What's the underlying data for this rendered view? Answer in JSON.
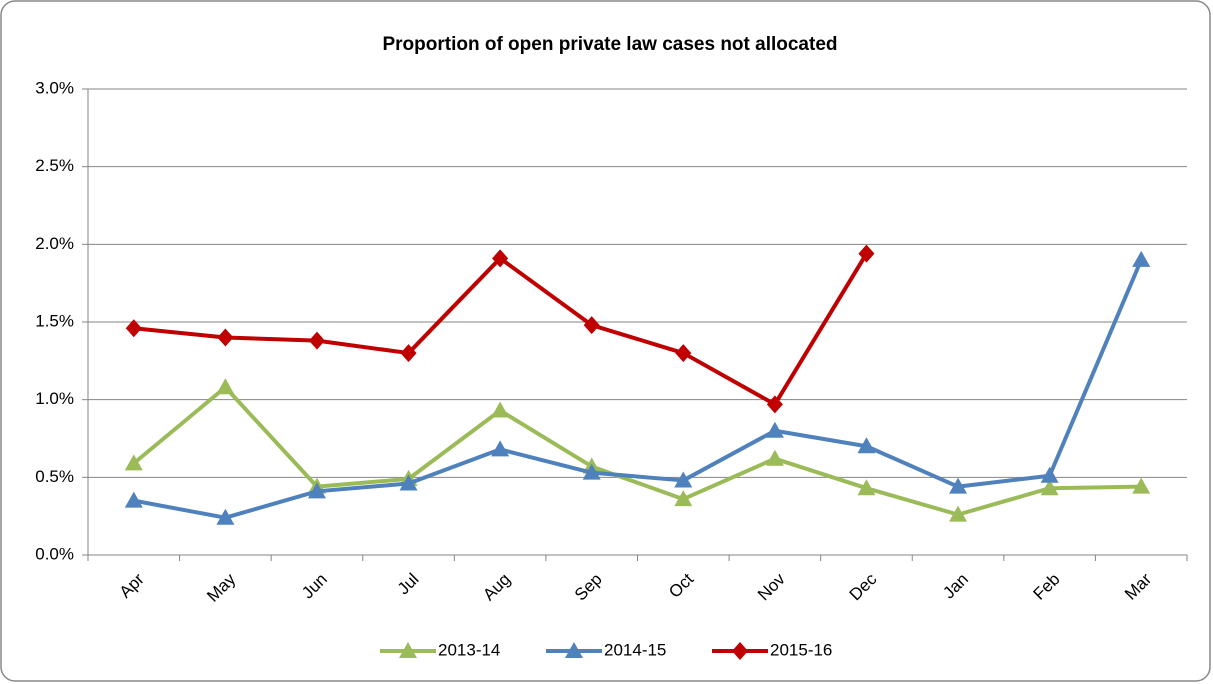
{
  "chart_data": {
    "type": "line",
    "title": "Proportion of open private law cases not allocated",
    "categories": [
      "Apr",
      "May",
      "Jun",
      "Jul",
      "Aug",
      "Sep",
      "Oct",
      "Nov",
      "Dec",
      "Jan",
      "Feb",
      "Mar"
    ],
    "series": [
      {
        "name": "2013-14",
        "color": "#9bbb59",
        "marker": "triangle",
        "values": [
          0.59,
          1.08,
          0.44,
          0.49,
          0.93,
          0.57,
          0.36,
          0.62,
          0.43,
          0.26,
          0.43,
          0.44
        ]
      },
      {
        "name": "2014-15",
        "color": "#4f81bd",
        "marker": "triangle",
        "values": [
          0.35,
          0.24,
          0.41,
          0.46,
          0.68,
          0.53,
          0.48,
          0.8,
          0.7,
          0.44,
          0.51,
          1.9
        ]
      },
      {
        "name": "2015-16",
        "color": "#c00000",
        "marker": "diamond",
        "values": [
          1.46,
          1.4,
          1.38,
          1.3,
          1.91,
          1.48,
          1.3,
          0.97,
          1.94,
          null,
          null,
          null
        ]
      }
    ],
    "ylim": [
      0,
      3
    ],
    "yticks": [
      {
        "value": 0,
        "label": "0.0%"
      },
      {
        "value": 0.5,
        "label": "0.5%"
      },
      {
        "value": 1,
        "label": "1.0%"
      },
      {
        "value": 1.5,
        "label": "1.5%"
      },
      {
        "value": 2,
        "label": "2.0%"
      },
      {
        "value": 2.5,
        "label": "2.5%"
      },
      {
        "value": 3,
        "label": "3.0%"
      }
    ],
    "grid": true,
    "legend": "bottom"
  }
}
